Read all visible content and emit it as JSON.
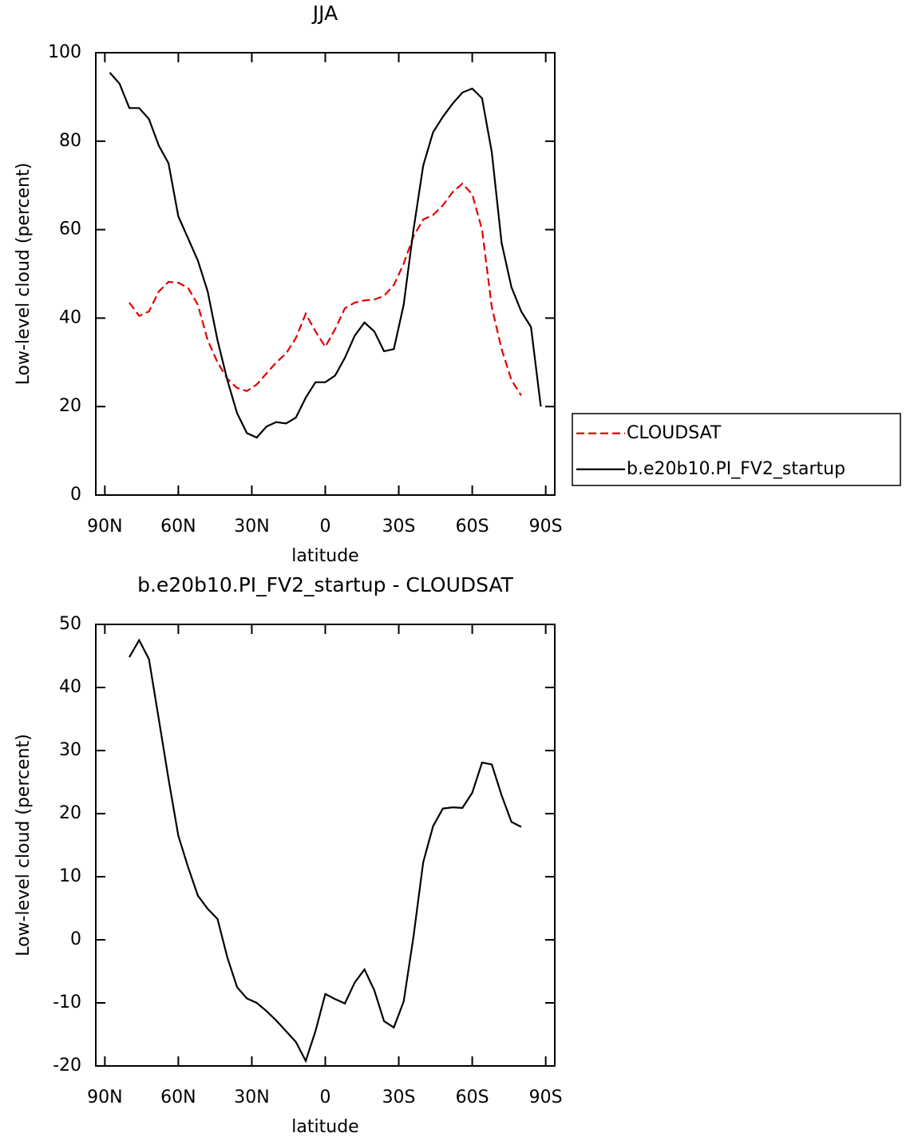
{
  "chart_data": [
    {
      "type": "line",
      "title": "JJA",
      "xlabel": "latitude",
      "ylabel": "Low-level cloud (percent)",
      "x": [
        88,
        84,
        80,
        76,
        72,
        68,
        64,
        60,
        56,
        52,
        48,
        44,
        40,
        36,
        32,
        28,
        24,
        20,
        16,
        12,
        8,
        4,
        0,
        -4,
        -8,
        -12,
        -16,
        -20,
        -24,
        -28,
        -32,
        -36,
        -40,
        -44,
        -48,
        -52,
        -56,
        -60,
        -64,
        -68,
        -72,
        -76,
        -80,
        -84,
        -88
      ],
      "series": [
        {
          "name": "CLOUDSAT",
          "color": "#e00000",
          "dash": true,
          "values": [
            null,
            null,
            43.5,
            40.5,
            41.5,
            46,
            48.2,
            48,
            46.8,
            43,
            35,
            30,
            26.3,
            24.2,
            23.5,
            25,
            27.5,
            30,
            32,
            35.5,
            41,
            37,
            33.5,
            37.5,
            42.2,
            43.5,
            44,
            44.2,
            45,
            47.5,
            52.3,
            58.5,
            62.3,
            63.3,
            65.5,
            68.5,
            70.4,
            68,
            60,
            42.5,
            33,
            26,
            22.5,
            null,
            null
          ]
        },
        {
          "name": "b.e20b10.PI_FV2_startup",
          "color": "#000000",
          "dash": false,
          "values": [
            95.5,
            93,
            87.5,
            87.5,
            85,
            79,
            75,
            63,
            58,
            53,
            46,
            35,
            26,
            18.5,
            14,
            13,
            15.5,
            16.5,
            16.2,
            17.5,
            22,
            25.5,
            25.5,
            27,
            31,
            36,
            39,
            37,
            32.5,
            33,
            43,
            60,
            74.5,
            82,
            85.5,
            88.5,
            91,
            91.9,
            89.7,
            77.5,
            57,
            47,
            41.5,
            38,
            20
          ]
        }
      ],
      "xlim": [
        93.7,
        -93.7
      ],
      "ylim": [
        0,
        100
      ],
      "xticks": [
        {
          "value": 90,
          "label": "90N"
        },
        {
          "value": 60,
          "label": "60N"
        },
        {
          "value": 30,
          "label": "30N"
        },
        0,
        {
          "value": -30,
          "label": "30S"
        },
        {
          "value": -60,
          "label": "60S"
        },
        {
          "value": -90,
          "label": "90S"
        }
      ],
      "yticks": [
        0,
        20,
        40,
        60,
        80,
        100
      ],
      "legend": "right"
    },
    {
      "type": "line",
      "title": "b.e20b10.PI_FV2_startup - CLOUDSAT",
      "xlabel": "latitude",
      "ylabel": "Low-level cloud (percent)",
      "x": [
        80,
        76,
        72,
        68,
        64,
        60,
        56,
        52,
        48,
        44,
        40,
        36,
        32,
        28,
        24,
        20,
        16,
        12,
        8,
        4,
        0,
        -4,
        -8,
        -12,
        -16,
        -20,
        -24,
        -28,
        -32,
        -36,
        -40,
        -44,
        -48,
        -52,
        -56,
        -60,
        -64,
        -68,
        -72,
        -76,
        -80
      ],
      "series": [
        {
          "color": "#000000",
          "dash": false,
          "values": [
            44.8,
            47.5,
            44.5,
            35,
            25.5,
            16.5,
            11.5,
            7,
            4.9,
            3.3,
            -2.8,
            -7.5,
            -9.3,
            -10,
            -11.3,
            -12.8,
            -14.5,
            -16.2,
            -19.2,
            -14.5,
            -8.6,
            -9.4,
            -10.1,
            -6.8,
            -4.7,
            -8,
            -12.9,
            -13.9,
            -9.8,
            0.5,
            12.3,
            18,
            20.8,
            21,
            20.9,
            23.3,
            28.1,
            27.8,
            22.9,
            18.7,
            17.9
          ]
        }
      ],
      "xlim": [
        93.7,
        -93.7
      ],
      "ylim": [
        -20,
        50
      ],
      "xticks": [
        {
          "value": 90,
          "label": "90N"
        },
        {
          "value": 60,
          "label": "60N"
        },
        {
          "value": 30,
          "label": "30N"
        },
        0,
        {
          "value": -30,
          "label": "30S"
        },
        {
          "value": -60,
          "label": "60S"
        },
        {
          "value": -90,
          "label": "90S"
        }
      ],
      "yticks": [
        -20,
        -10,
        0,
        10,
        20,
        30,
        40,
        50
      ]
    }
  ]
}
